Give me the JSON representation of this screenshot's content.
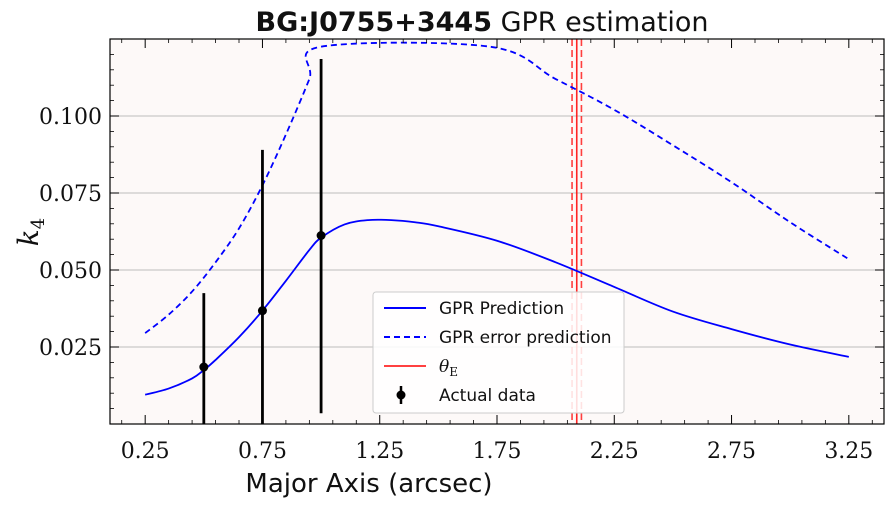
{
  "chart_data": {
    "type": "line",
    "title_bold": "BG:J0755+3445",
    "title_rest": " GPR estimation",
    "xlabel": "Major Axis (arcsec)",
    "ylabel": "k",
    "ylabel_sub": "4",
    "xlim": [
      0.1,
      3.4
    ],
    "ylim": [
      0.0,
      0.125
    ],
    "xticks": [
      0.25,
      0.75,
      1.25,
      1.75,
      2.25,
      2.75,
      3.25
    ],
    "xtick_labels": [
      "0.25",
      "0.75",
      "1.25",
      "1.75",
      "2.25",
      "2.75",
      "3.25"
    ],
    "yticks": [
      0.025,
      0.05,
      0.075,
      0.1
    ],
    "ytick_labels": [
      "0.025",
      "0.050",
      "0.075",
      "0.100"
    ],
    "grid": "horizontal",
    "legend_position": "bottom-center",
    "series": [
      {
        "name": "GPR Prediction",
        "style": "solid",
        "color": "#0000ff",
        "x": [
          0.25,
          0.35,
          0.45,
          0.5,
          0.55,
          0.65,
          0.75,
          0.85,
          0.95,
          1.0,
          1.1,
          1.2,
          1.3,
          1.4,
          1.5,
          1.75,
          2.0,
          2.25,
          2.5,
          2.75,
          3.0,
          3.25
        ],
        "y": [
          0.0095,
          0.0115,
          0.0148,
          0.0175,
          0.0208,
          0.0282,
          0.0368,
          0.0465,
          0.0565,
          0.0605,
          0.0648,
          0.0662,
          0.0662,
          0.0655,
          0.0642,
          0.0595,
          0.0525,
          0.0445,
          0.0365,
          0.0308,
          0.0258,
          0.0218
        ]
      },
      {
        "name": "GPR error prediction",
        "style": "dashed",
        "color": "#0000ff",
        "x": [
          0.25,
          0.35,
          0.45,
          0.55,
          0.65,
          0.75,
          0.85,
          0.95,
          1.0,
          1.72,
          2.0,
          2.25,
          2.5,
          2.75,
          3.0,
          3.25
        ],
        "y": [
          0.0295,
          0.0355,
          0.043,
          0.0525,
          0.0635,
          0.0775,
          0.094,
          0.112,
          0.1225,
          0.1225,
          0.112,
          0.102,
          0.0905,
          0.0785,
          0.0655,
          0.0535
        ]
      }
    ],
    "theta_e": {
      "name": "θE",
      "name_main": "θ",
      "name_sub": "E",
      "color": "#ff0000",
      "x": 2.09,
      "band": [
        2.07,
        2.11
      ]
    },
    "actual_data": {
      "name": "Actual data",
      "color": "#000000",
      "x": [
        0.5,
        0.75,
        1.0
      ],
      "y": [
        0.0185,
        0.0368,
        0.0612
      ],
      "err_low": [
        0.0,
        0.0,
        0.0035
      ],
      "err_high": [
        0.0425,
        0.089,
        0.1185
      ]
    }
  }
}
